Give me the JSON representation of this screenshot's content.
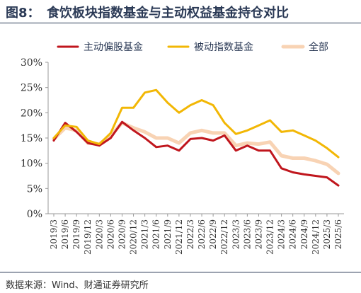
{
  "header": {
    "figure_number": "图8：",
    "title": "食饮板块指数基金与主动权益基金持仓对比"
  },
  "footer": {
    "source": "数据来源：Wind、财通证券研究所"
  },
  "colors": {
    "text": "#2b3a56",
    "axis": "#9a9a9a"
  },
  "chart_data": {
    "type": "line",
    "title": "食饮板块指数基金与主动权益基金持仓对比",
    "xlabel": "",
    "ylabel": "",
    "ylim": [
      0,
      30
    ],
    "yticks": [
      "0%",
      "5%",
      "10%",
      "15%",
      "20%",
      "25%",
      "30%"
    ],
    "legend_position": "top",
    "grid": false,
    "x": [
      "2019/3",
      "2019/6",
      "2019/9",
      "2019/12",
      "2020/3",
      "2020/6",
      "2020/9",
      "2020/12",
      "2021/3",
      "2021/6",
      "2021/9",
      "2021/12",
      "2022/3",
      "2022/6",
      "2022/9",
      "2022/12",
      "2023/3",
      "2023/6",
      "2023/9",
      "2023/12",
      "2024/3",
      "2024/6",
      "2024/9",
      "2024/12",
      "2025/3",
      "2025/6"
    ],
    "series": [
      {
        "name": "主动偏股基金",
        "color": "#c0161d",
        "values": [
          14.5,
          18.0,
          16.2,
          14.0,
          13.5,
          15.0,
          18.2,
          16.5,
          15.0,
          13.2,
          13.5,
          12.5,
          14.8,
          15.0,
          14.5,
          15.5,
          12.5,
          13.5,
          12.5,
          12.5,
          9.0,
          8.2,
          7.8,
          7.5,
          7.2,
          5.6
        ]
      },
      {
        "name": "被动指数基金",
        "color": "#f2b705",
        "values": [
          15.0,
          17.5,
          17.2,
          14.5,
          13.8,
          16.0,
          21.0,
          21.0,
          24.0,
          24.5,
          22.0,
          20.0,
          21.5,
          22.5,
          21.5,
          18.0,
          15.8,
          16.5,
          17.5,
          18.5,
          16.2,
          16.5,
          15.5,
          14.5,
          13.0,
          11.2
        ]
      },
      {
        "name": "全部",
        "color": "#f8d3b4",
        "values": [
          14.8,
          17.0,
          16.5,
          14.0,
          13.8,
          15.5,
          18.0,
          17.0,
          16.2,
          15.0,
          15.0,
          14.0,
          16.0,
          16.5,
          16.0,
          16.0,
          13.5,
          14.0,
          13.8,
          14.2,
          11.5,
          11.0,
          11.0,
          10.5,
          9.8,
          8.0
        ]
      }
    ]
  }
}
